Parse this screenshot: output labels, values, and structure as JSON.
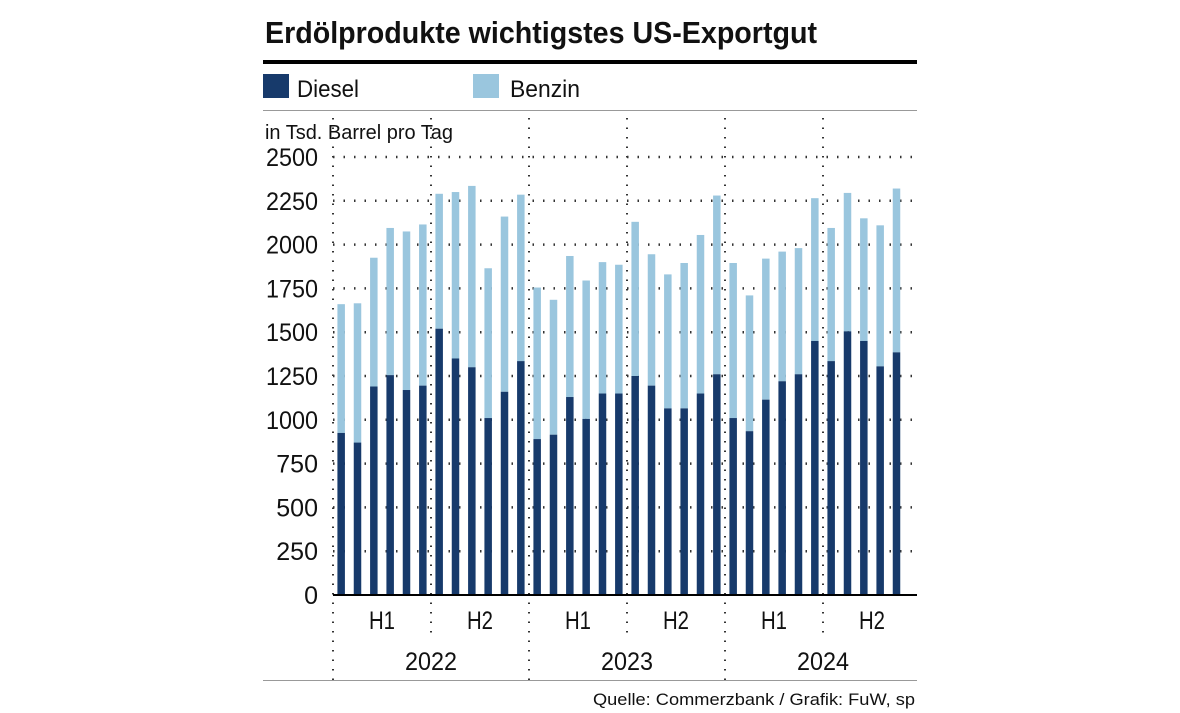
{
  "chart_data": {
    "type": "bar",
    "stacked": true,
    "title": "Erdölprodukte wichtigstes US-Exportgut",
    "ylabel": "in Tsd. Barrel pro Tag",
    "ylim": [
      0,
      2500
    ],
    "yticks": [
      0,
      250,
      500,
      750,
      1000,
      1250,
      1500,
      1750,
      2000,
      2250,
      2500
    ],
    "grid": true,
    "legend_position": "top-left",
    "years": [
      "2022",
      "2023",
      "2024"
    ],
    "halves": [
      "H1",
      "H2"
    ],
    "series": [
      {
        "name": "Diesel",
        "color": "#173a6b",
        "values": [
          925,
          870,
          1190,
          1255,
          1170,
          1195,
          1520,
          1350,
          1300,
          1010,
          1160,
          1335,
          890,
          915,
          1130,
          1005,
          1150,
          1150,
          1250,
          1195,
          1065,
          1065,
          1150,
          1260,
          1010,
          935,
          1115,
          1220,
          1260,
          1450,
          1335,
          1505,
          1450,
          1305,
          1385
        ]
      },
      {
        "name": "Benzin",
        "color": "#9ac6de",
        "totals": [
          1660,
          1665,
          1925,
          2095,
          2075,
          2115,
          2290,
          2300,
          2335,
          1865,
          2160,
          2285,
          1755,
          1685,
          1935,
          1795,
          1900,
          1885,
          2130,
          1945,
          1830,
          1895,
          2055,
          2280,
          1895,
          1710,
          1920,
          1960,
          1980,
          2265,
          2095,
          2295,
          2150,
          2110,
          2320
        ]
      }
    ],
    "source": "Quelle: Commerzbank / Grafik: FuW, sp"
  }
}
